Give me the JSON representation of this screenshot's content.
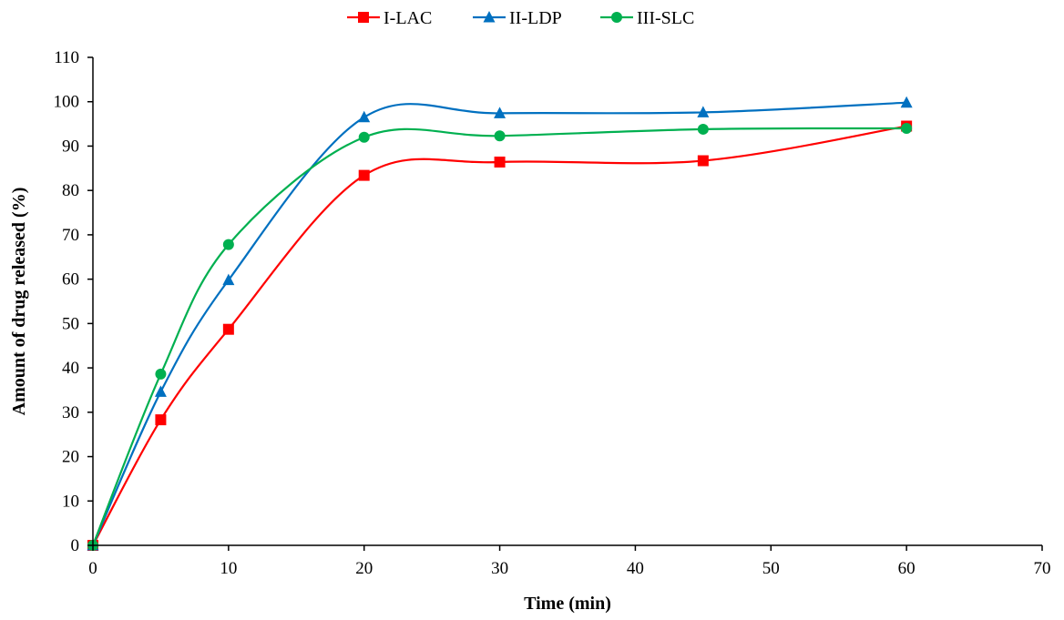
{
  "chart_data": {
    "type": "line",
    "smooth": true,
    "xlabel": "Time (min)",
    "ylabel": "Amount of drug released (%)",
    "xlim": [
      0,
      70
    ],
    "ylim": [
      0,
      110
    ],
    "xticks": [
      0,
      10,
      20,
      30,
      40,
      50,
      60,
      70
    ],
    "yticks": [
      0,
      10,
      20,
      30,
      40,
      50,
      60,
      70,
      80,
      90,
      100,
      110
    ],
    "grid": false,
    "legend_position": "top",
    "series": [
      {
        "name": "I-LAC",
        "color": "#ff0000",
        "marker": "square",
        "x": [
          0,
          5,
          10,
          20,
          30,
          45,
          60
        ],
        "y": [
          0,
          28.3,
          48.7,
          83.4,
          86.4,
          86.7,
          94.5
        ]
      },
      {
        "name": "II-LDP",
        "color": "#0070c0",
        "marker": "triangle",
        "x": [
          0,
          5,
          10,
          20,
          30,
          45,
          60
        ],
        "y": [
          0,
          34.6,
          59.8,
          96.5,
          97.4,
          97.6,
          99.8
        ]
      },
      {
        "name": "III-SLC",
        "color": "#00b050",
        "marker": "circle",
        "x": [
          0,
          5,
          10,
          20,
          30,
          45,
          60
        ],
        "y": [
          0,
          38.6,
          67.8,
          92.0,
          92.3,
          93.8,
          94.0
        ]
      }
    ]
  }
}
